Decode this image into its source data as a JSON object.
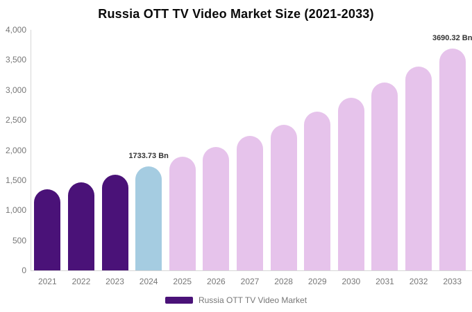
{
  "title": "Russia OTT TV Video Market Size (2021-2033)",
  "colors": {
    "historical": "#4A1278",
    "current": "#A5CCE1",
    "forecast": "#E6C3EB",
    "axis_line": "#D6D6D6",
    "tick_label": "#777777",
    "data_label": "#333333"
  },
  "legend": {
    "label": "Russia OTT TV Video Market",
    "swatch_color": "#4A1278"
  },
  "chart_data": {
    "type": "bar",
    "title": "Russia OTT TV Video Market Size (2021-2033)",
    "categories": [
      "2021",
      "2022",
      "2023",
      "2024",
      "2025",
      "2026",
      "2027",
      "2028",
      "2029",
      "2030",
      "2031",
      "2032",
      "2033"
    ],
    "series": [
      {
        "name": "Russia OTT TV Video Market",
        "values": [
          1348,
          1466,
          1594,
          1733.73,
          1886,
          2051,
          2231,
          2426,
          2639,
          2870,
          3121,
          3394,
          3690.32
        ]
      }
    ],
    "unit": "Bn",
    "bar_segments": [
      "historical",
      "historical",
      "historical",
      "current",
      "forecast",
      "forecast",
      "forecast",
      "forecast",
      "forecast",
      "forecast",
      "forecast",
      "forecast",
      "forecast"
    ],
    "data_labels": {
      "2024": "1733.73 Bn",
      "2033": "3690.32 Bn"
    },
    "xlabel": "",
    "ylabel": "",
    "ylim": [
      0,
      4000
    ],
    "ytick_interval": 500,
    "ytick_labels": [
      "0",
      "500",
      "1,000",
      "1,500",
      "2,000",
      "2,500",
      "3,000",
      "3,500",
      "4,000"
    ],
    "grid": false,
    "legend_position": "bottom"
  }
}
